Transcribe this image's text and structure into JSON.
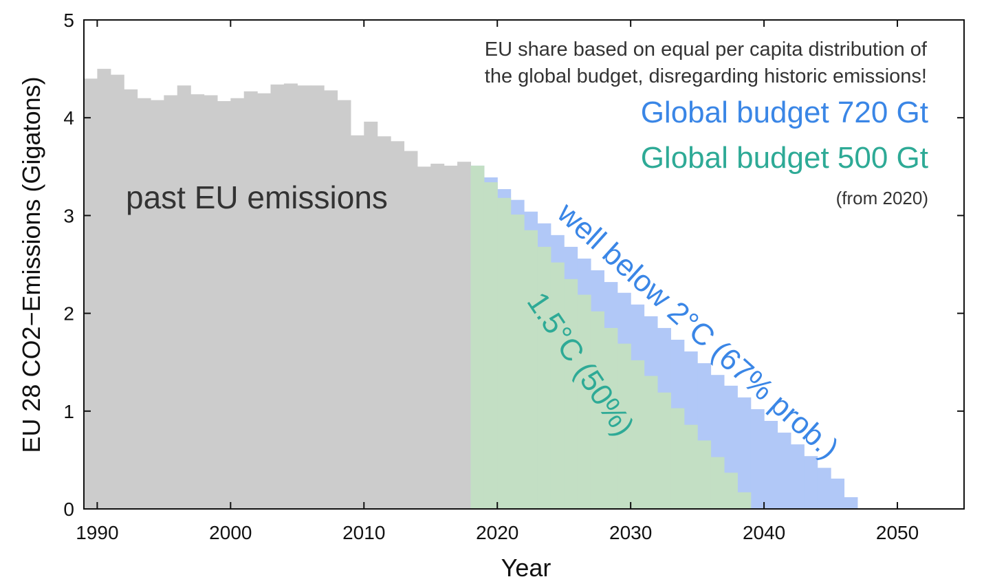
{
  "chart_data": {
    "type": "bar",
    "xlabel": "Year",
    "ylabel": "EU 28 CO2−Emissions (Gigatons)",
    "xlim": [
      1989,
      2055
    ],
    "ylim": [
      0,
      5
    ],
    "xticks": [
      1990,
      2000,
      2010,
      2020,
      2030,
      2040,
      2050
    ],
    "yticks": [
      0,
      1,
      2,
      3,
      4,
      5
    ],
    "grid": false,
    "note_lines": [
      "EU share based on equal per capita distribution of",
      "the global budget, disregarding historic emissions!"
    ],
    "legend": [
      {
        "label": "Global budget 720 Gt",
        "color": "#3a86e6"
      },
      {
        "label": "Global budget 500 Gt",
        "color": "#2eaa96"
      }
    ],
    "legend_note": "(from 2020)",
    "annotations": {
      "past": "past EU emissions",
      "blue_path": "well below 2°C (67% prob.)",
      "green_path": "1.5°C (50%)"
    },
    "colors": {
      "past": "#cccccc",
      "budget_720": "#b1c8f7",
      "budget_500": "#c3dfc4",
      "budget_720_text": "#3a86e6",
      "budget_500_text": "#2eaa96"
    },
    "series": [
      {
        "name": "past EU emissions",
        "x": [
          1989,
          1990,
          1991,
          1992,
          1993,
          1994,
          1995,
          1996,
          1997,
          1998,
          1999,
          2000,
          2001,
          2002,
          2003,
          2004,
          2005,
          2006,
          2007,
          2008,
          2009,
          2010,
          2011,
          2012,
          2013,
          2014,
          2015,
          2016,
          2017
        ],
        "values": [
          4.4,
          4.5,
          4.44,
          4.29,
          4.2,
          4.18,
          4.23,
          4.33,
          4.24,
          4.23,
          4.17,
          4.2,
          4.27,
          4.25,
          4.34,
          4.35,
          4.33,
          4.33,
          4.28,
          4.18,
          3.82,
          3.96,
          3.81,
          3.76,
          3.66,
          3.5,
          3.53,
          3.51,
          3.55
        ]
      },
      {
        "name": "Global budget 720 Gt",
        "x": [
          2018,
          2019,
          2020,
          2021,
          2022,
          2023,
          2024,
          2025,
          2026,
          2027,
          2028,
          2029,
          2030,
          2031,
          2032,
          2033,
          2034,
          2035,
          2036,
          2037,
          2038,
          2039,
          2040,
          2041,
          2042,
          2043,
          2044,
          2045,
          2046,
          2047
        ],
        "values": [
          3.51,
          3.39,
          3.27,
          3.16,
          3.04,
          2.92,
          2.8,
          2.68,
          2.56,
          2.44,
          2.32,
          2.21,
          2.09,
          1.97,
          1.85,
          1.73,
          1.61,
          1.49,
          1.37,
          1.26,
          1.14,
          1.02,
          0.9,
          0.78,
          0.66,
          0.54,
          0.42,
          0.31,
          0.12,
          0.0
        ]
      },
      {
        "name": "Global budget 500 Gt",
        "x": [
          2018,
          2019,
          2020,
          2021,
          2022,
          2023,
          2024,
          2025,
          2026,
          2027,
          2028,
          2029,
          2030,
          2031,
          2032,
          2033,
          2034,
          2035,
          2036,
          2037,
          2038,
          2039
        ],
        "values": [
          3.51,
          3.34,
          3.18,
          3.01,
          2.85,
          2.68,
          2.52,
          2.35,
          2.19,
          2.02,
          1.85,
          1.69,
          1.52,
          1.36,
          1.19,
          1.03,
          0.86,
          0.7,
          0.53,
          0.37,
          0.17,
          0.0
        ]
      }
    ]
  }
}
